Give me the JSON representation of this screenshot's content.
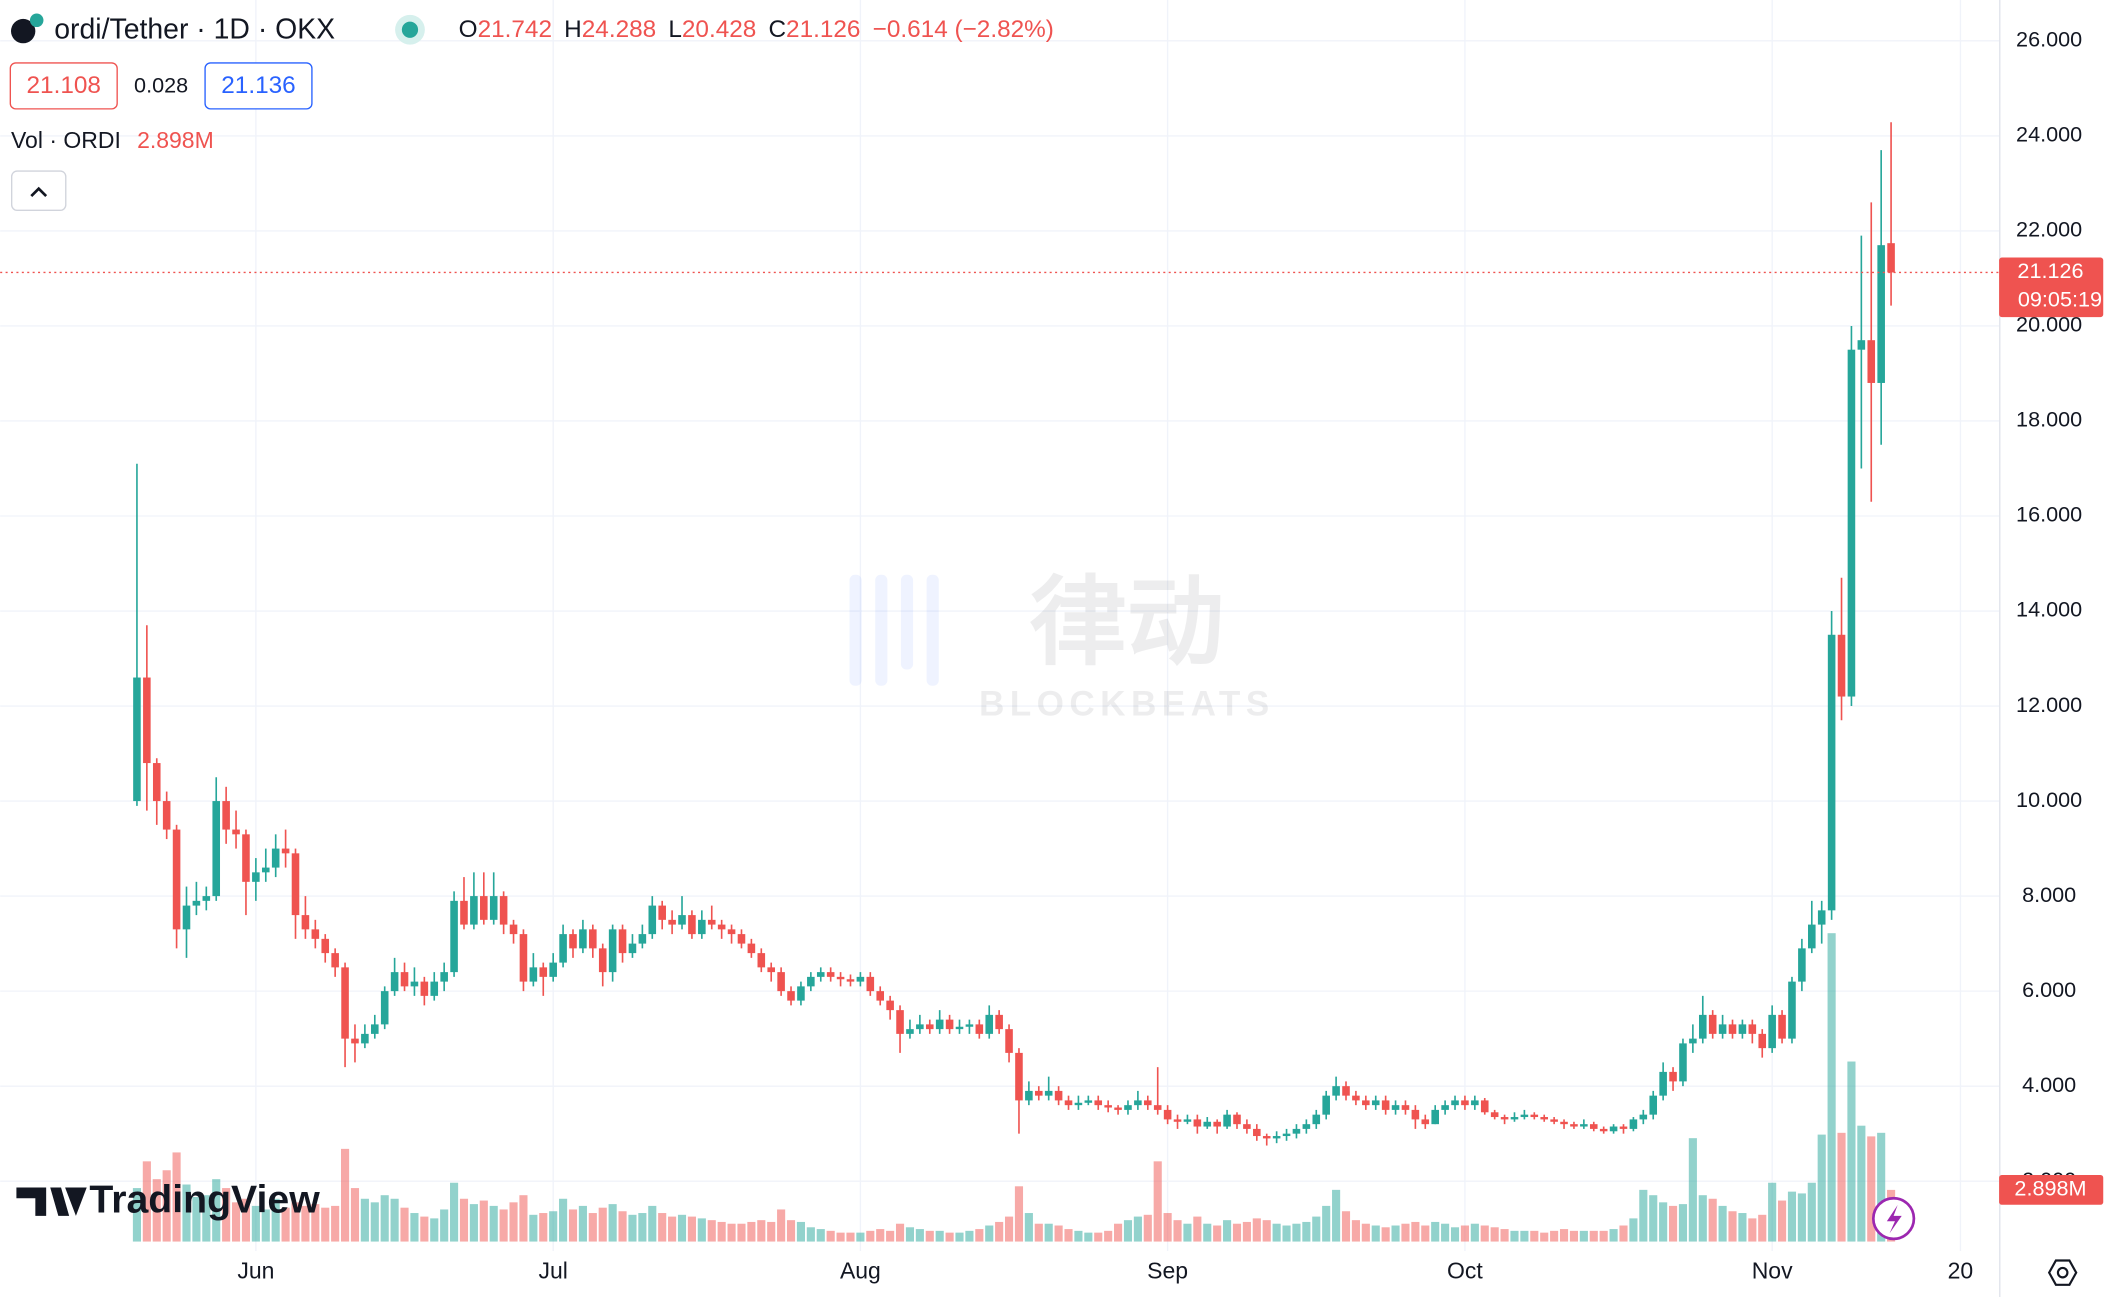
{
  "chart_data": {
    "type": "candlestick",
    "title": "ordi/Tether · 1D · OKX",
    "ohlc_letters": [
      "O",
      "H",
      "L",
      "C"
    ],
    "change_label": "−0.614 (−2.82%)",
    "bid": 21.108,
    "spread": 0.028,
    "ask": 21.136,
    "countdown": "09:05:19",
    "up_color": "#26a69a",
    "down_color": "#ef5350",
    "watermark": {
      "text": "律动",
      "subtext": "BLOCKBEATS"
    },
    "branding": "TradingView",
    "x": [
      0,
      1,
      2,
      3,
      4,
      5,
      6,
      7,
      8,
      9,
      10,
      11,
      12,
      13,
      14,
      15,
      16,
      17,
      18,
      19,
      20,
      21,
      22,
      23,
      24,
      25,
      26,
      27,
      28,
      29,
      30,
      31,
      32,
      33,
      34,
      35,
      36,
      37,
      38,
      39,
      40,
      41,
      42,
      43,
      44,
      45,
      46,
      47,
      48,
      49,
      50,
      51,
      52,
      53,
      54,
      55,
      56,
      57,
      58,
      59,
      60,
      61,
      62,
      63,
      64,
      65,
      66,
      67,
      68,
      69,
      70,
      71,
      72,
      73,
      74,
      75,
      76,
      77,
      78,
      79,
      80,
      81,
      82,
      83,
      84,
      85,
      86,
      87,
      88,
      89,
      90,
      91,
      92,
      93,
      94,
      95,
      96,
      97,
      98,
      99,
      100,
      101,
      102,
      103,
      104,
      105,
      106,
      107,
      108,
      109,
      110,
      111,
      112,
      113,
      114,
      115,
      116,
      117,
      118,
      119,
      120,
      121,
      122,
      123,
      124,
      125,
      126,
      127,
      128,
      129,
      130,
      131,
      132,
      133,
      134,
      135,
      136,
      137,
      138,
      139,
      140,
      141,
      142,
      143,
      144,
      145,
      146,
      147,
      148,
      149,
      150,
      151,
      152,
      153,
      154,
      155,
      156,
      157,
      158,
      159,
      160,
      161,
      162,
      163,
      164,
      165,
      166,
      167,
      168,
      169,
      170,
      171,
      172,
      173,
      174,
      175,
      176,
      177
    ],
    "open": [
      10.0,
      12.6,
      10.8,
      10.0,
      9.4,
      7.3,
      7.8,
      7.9,
      8.0,
      10.0,
      9.4,
      9.3,
      8.3,
      8.5,
      8.6,
      9.0,
      8.9,
      7.6,
      7.3,
      7.1,
      6.8,
      6.5,
      5.0,
      4.9,
      5.1,
      5.3,
      6.0,
      6.4,
      6.1,
      6.2,
      5.9,
      6.2,
      6.4,
      7.9,
      7.4,
      8.0,
      7.5,
      8.0,
      7.4,
      7.2,
      6.2,
      6.5,
      6.3,
      6.6,
      7.2,
      6.9,
      7.3,
      6.9,
      6.4,
      7.3,
      6.8,
      7.0,
      7.2,
      7.8,
      7.5,
      7.4,
      7.6,
      7.2,
      7.5,
      7.4,
      7.3,
      7.2,
      7.0,
      6.8,
      6.5,
      6.4,
      6.0,
      5.8,
      6.1,
      6.3,
      6.4,
      6.3,
      6.25,
      6.2,
      6.3,
      6.0,
      5.8,
      5.6,
      5.1,
      5.2,
      5.3,
      5.2,
      5.4,
      5.2,
      5.25,
      5.3,
      5.1,
      5.5,
      5.2,
      4.7,
      3.7,
      3.9,
      3.8,
      3.9,
      3.7,
      3.6,
      3.65,
      3.7,
      3.6,
      3.55,
      3.5,
      3.6,
      3.7,
      3.6,
      3.5,
      3.3,
      3.25,
      3.3,
      3.15,
      3.25,
      3.15,
      3.4,
      3.2,
      3.1,
      2.95,
      2.9,
      2.95,
      3.0,
      3.1,
      3.2,
      3.4,
      3.8,
      4.0,
      3.8,
      3.7,
      3.6,
      3.7,
      3.5,
      3.6,
      3.5,
      3.3,
      3.2,
      3.5,
      3.6,
      3.7,
      3.6,
      3.7,
      3.45,
      3.35,
      3.3,
      3.35,
      3.4,
      3.35,
      3.3,
      3.25,
      3.2,
      3.15,
      3.2,
      3.1,
      3.05,
      3.15,
      3.1,
      3.3,
      3.4,
      3.8,
      4.3,
      4.1,
      4.9,
      5.0,
      5.5,
      5.1,
      5.3,
      5.1,
      5.3,
      5.1,
      4.8,
      5.5,
      5.0,
      6.2,
      6.9,
      7.4,
      7.7,
      13.5,
      12.2,
      19.5,
      19.7,
      18.8,
      21.742
    ],
    "high": [
      17.1,
      13.7,
      10.9,
      10.2,
      9.5,
      8.2,
      8.3,
      8.2,
      10.5,
      10.3,
      9.8,
      9.4,
      8.8,
      9.0,
      9.3,
      9.4,
      9.0,
      8.0,
      7.5,
      7.2,
      6.9,
      6.6,
      5.3,
      5.3,
      5.5,
      6.1,
      6.7,
      6.6,
      6.5,
      6.3,
      6.4,
      6.6,
      8.1,
      8.4,
      8.5,
      8.5,
      8.5,
      8.1,
      7.5,
      7.3,
      6.8,
      6.6,
      6.8,
      7.4,
      7.3,
      7.5,
      7.4,
      7.0,
      7.4,
      7.4,
      7.2,
      7.4,
      8.0,
      7.9,
      7.7,
      8.0,
      7.7,
      7.7,
      7.8,
      7.5,
      7.4,
      7.3,
      7.1,
      6.9,
      6.6,
      6.5,
      6.1,
      6.2,
      6.4,
      6.5,
      6.5,
      6.4,
      6.35,
      6.4,
      6.4,
      6.1,
      5.9,
      5.7,
      5.4,
      5.5,
      5.4,
      5.6,
      5.5,
      5.4,
      5.4,
      5.4,
      5.7,
      5.6,
      5.3,
      4.8,
      4.1,
      4.0,
      4.2,
      4.0,
      3.8,
      3.8,
      3.8,
      3.8,
      3.7,
      3.6,
      3.7,
      3.9,
      3.8,
      4.4,
      3.6,
      3.4,
      3.4,
      3.4,
      3.35,
      3.3,
      3.5,
      3.45,
      3.3,
      3.2,
      3.0,
      3.05,
      3.1,
      3.2,
      3.3,
      3.5,
      3.9,
      4.2,
      4.1,
      3.9,
      3.8,
      3.8,
      3.8,
      3.7,
      3.7,
      3.6,
      3.4,
      3.6,
      3.7,
      3.8,
      3.8,
      3.8,
      3.75,
      3.5,
      3.4,
      3.45,
      3.5,
      3.45,
      3.4,
      3.35,
      3.3,
      3.25,
      3.3,
      3.25,
      3.15,
      3.2,
      3.2,
      3.35,
      3.5,
      3.9,
      4.5,
      4.4,
      5.0,
      5.3,
      5.9,
      5.6,
      5.5,
      5.4,
      5.4,
      5.4,
      5.2,
      5.7,
      5.6,
      6.3,
      7.1,
      7.9,
      7.9,
      14.0,
      14.7,
      20.0,
      21.9,
      22.6,
      23.7,
      24.288
    ],
    "low": [
      9.9,
      9.8,
      9.5,
      9.2,
      6.9,
      6.7,
      7.6,
      7.7,
      7.9,
      9.1,
      9.0,
      7.6,
      7.9,
      8.3,
      8.4,
      8.6,
      7.1,
      7.1,
      6.9,
      6.6,
      6.3,
      4.4,
      4.5,
      4.8,
      5.0,
      5.2,
      5.9,
      6.0,
      5.9,
      5.7,
      5.8,
      6.0,
      6.3,
      7.3,
      7.3,
      7.4,
      7.4,
      7.2,
      7.0,
      6.0,
      6.1,
      5.9,
      6.2,
      6.5,
      6.7,
      6.8,
      6.7,
      6.1,
      6.2,
      6.6,
      6.7,
      6.9,
      7.1,
      7.3,
      7.2,
      7.3,
      7.1,
      7.1,
      7.3,
      7.1,
      7.0,
      6.9,
      6.7,
      6.4,
      6.2,
      5.9,
      5.7,
      5.7,
      6.0,
      6.2,
      6.2,
      6.1,
      6.1,
      6.1,
      5.9,
      5.7,
      5.4,
      4.7,
      5.0,
      5.1,
      5.1,
      5.1,
      5.1,
      5.1,
      5.1,
      5.0,
      5.0,
      5.1,
      4.5,
      3.0,
      3.6,
      3.7,
      3.7,
      3.6,
      3.5,
      3.5,
      3.6,
      3.5,
      3.45,
      3.4,
      3.4,
      3.5,
      3.5,
      3.4,
      3.2,
      3.1,
      3.2,
      3.0,
      3.1,
      3.0,
      3.1,
      3.1,
      3.0,
      2.85,
      2.75,
      2.8,
      2.85,
      2.9,
      3.0,
      3.1,
      3.3,
      3.7,
      3.7,
      3.6,
      3.5,
      3.5,
      3.4,
      3.4,
      3.4,
      3.1,
      3.1,
      3.2,
      3.4,
      3.5,
      3.5,
      3.5,
      3.4,
      3.3,
      3.2,
      3.25,
      3.3,
      3.3,
      3.25,
      3.2,
      3.1,
      3.1,
      3.1,
      3.05,
      3.0,
      3.0,
      3.0,
      3.05,
      3.2,
      3.3,
      3.7,
      3.9,
      4.0,
      4.7,
      4.9,
      5.0,
      5.0,
      5.0,
      5.0,
      4.9,
      4.6,
      4.7,
      4.9,
      4.9,
      6.0,
      6.8,
      7.0,
      7.5,
      11.7,
      12.0,
      17.0,
      16.3,
      17.5,
      20.428
    ],
    "close": [
      12.6,
      10.8,
      10.0,
      9.4,
      7.3,
      7.8,
      7.9,
      8.0,
      10.0,
      9.4,
      9.3,
      8.3,
      8.5,
      8.6,
      9.0,
      8.9,
      7.6,
      7.3,
      7.1,
      6.8,
      6.5,
      5.0,
      4.9,
      5.1,
      5.3,
      6.0,
      6.4,
      6.1,
      6.2,
      5.9,
      6.2,
      6.4,
      7.9,
      7.4,
      8.0,
      7.5,
      8.0,
      7.4,
      7.2,
      6.2,
      6.5,
      6.3,
      6.6,
      7.2,
      6.9,
      7.3,
      6.9,
      6.4,
      7.3,
      6.8,
      7.0,
      7.2,
      7.8,
      7.5,
      7.4,
      7.6,
      7.2,
      7.5,
      7.4,
      7.3,
      7.2,
      7.0,
      6.8,
      6.5,
      6.4,
      6.0,
      5.8,
      6.1,
      6.3,
      6.4,
      6.3,
      6.25,
      6.2,
      6.3,
      6.0,
      5.8,
      5.6,
      5.1,
      5.2,
      5.3,
      5.2,
      5.4,
      5.2,
      5.25,
      5.3,
      5.1,
      5.5,
      5.2,
      4.7,
      3.7,
      3.9,
      3.8,
      3.9,
      3.7,
      3.6,
      3.65,
      3.7,
      3.6,
      3.55,
      3.5,
      3.6,
      3.7,
      3.6,
      3.5,
      3.3,
      3.25,
      3.3,
      3.15,
      3.25,
      3.15,
      3.4,
      3.2,
      3.1,
      2.95,
      2.9,
      2.95,
      3.0,
      3.1,
      3.2,
      3.4,
      3.8,
      4.0,
      3.8,
      3.7,
      3.6,
      3.7,
      3.5,
      3.6,
      3.5,
      3.3,
      3.2,
      3.5,
      3.6,
      3.7,
      3.6,
      3.7,
      3.45,
      3.35,
      3.3,
      3.35,
      3.4,
      3.35,
      3.3,
      3.25,
      3.2,
      3.15,
      3.2,
      3.1,
      3.05,
      3.15,
      3.1,
      3.3,
      3.4,
      3.8,
      4.3,
      4.1,
      4.9,
      5.0,
      5.5,
      5.1,
      5.3,
      5.1,
      5.3,
      5.1,
      4.8,
      5.5,
      5.0,
      6.2,
      6.9,
      7.4,
      7.7,
      13.5,
      12.2,
      19.5,
      19.7,
      18.8,
      21.7,
      21.126
    ],
    "volume": {
      "name": "Vol · ORDI",
      "last_label": "2.898M",
      "values": [
        3.0,
        4.5,
        3.5,
        4.0,
        5.0,
        3.2,
        2.5,
        2.6,
        3.5,
        3.0,
        2.2,
        2.4,
        2.0,
        1.8,
        2.4,
        1.9,
        2.2,
        2.0,
        2.1,
        1.9,
        2.0,
        5.2,
        3.0,
        2.4,
        2.2,
        2.6,
        2.4,
        1.9,
        1.6,
        1.4,
        1.3,
        1.8,
        3.3,
        2.4,
        2.1,
        2.3,
        2.0,
        1.8,
        2.2,
        2.6,
        1.5,
        1.6,
        1.7,
        2.4,
        1.8,
        2.0,
        1.6,
        1.9,
        2.1,
        1.7,
        1.5,
        1.6,
        2.0,
        1.6,
        1.4,
        1.5,
        1.4,
        1.3,
        1.2,
        1.1,
        1.0,
        1.0,
        1.1,
        1.2,
        1.1,
        1.8,
        1.2,
        1.1,
        0.8,
        0.7,
        0.6,
        0.5,
        0.5,
        0.5,
        0.6,
        0.7,
        0.6,
        1.0,
        0.8,
        0.7,
        0.6,
        0.6,
        0.5,
        0.5,
        0.6,
        0.7,
        0.9,
        1.1,
        1.4,
        3.1,
        1.6,
        1.0,
        1.0,
        0.9,
        0.7,
        0.6,
        0.5,
        0.5,
        0.6,
        1.0,
        1.2,
        1.4,
        1.5,
        4.5,
        1.6,
        1.2,
        1.0,
        1.4,
        1.0,
        0.9,
        1.2,
        1.0,
        1.1,
        1.3,
        1.2,
        1.0,
        0.9,
        1.0,
        1.1,
        1.4,
        2.0,
        2.9,
        1.7,
        1.2,
        1.0,
        0.9,
        0.8,
        0.9,
        1.0,
        1.1,
        0.9,
        1.1,
        1.0,
        0.8,
        0.9,
        1.0,
        0.9,
        0.8,
        0.7,
        0.6,
        0.6,
        0.6,
        0.5,
        0.6,
        0.7,
        0.6,
        0.6,
        0.6,
        0.6,
        0.7,
        0.9,
        1.3,
        2.9,
        2.6,
        2.2,
        2.0,
        2.1,
        5.8,
        2.6,
        2.4,
        2.0,
        1.7,
        1.6,
        1.3,
        1.5,
        3.3,
        2.3,
        2.8,
        2.7,
        3.3,
        6.0,
        17.3,
        6.1,
        10.1,
        6.5,
        5.9,
        6.1,
        2.898
      ]
    },
    "xlim": [
      -13.8,
      187.9
    ],
    "xticks": [
      {
        "value": 12,
        "label": "Jun"
      },
      {
        "value": 42,
        "label": "Jul"
      },
      {
        "value": 73,
        "label": "Aug"
      },
      {
        "value": 104,
        "label": "Sep"
      },
      {
        "value": 134,
        "label": "Oct"
      },
      {
        "value": 165,
        "label": "Nov"
      },
      {
        "value": 184,
        "label": "20"
      }
    ],
    "ylim": [
      0.53,
      26.86
    ],
    "yticks": [
      {
        "value": 2,
        "label": "2.000"
      },
      {
        "value": 4,
        "label": "4.000"
      },
      {
        "value": 6,
        "label": "6.000"
      },
      {
        "value": 8,
        "label": "8.000"
      },
      {
        "value": 10,
        "label": "10.000"
      },
      {
        "value": 12,
        "label": "12.000"
      },
      {
        "value": 14,
        "label": "14.000"
      },
      {
        "value": 16,
        "label": "16.000"
      },
      {
        "value": 18,
        "label": "18.000"
      },
      {
        "value": 20,
        "label": "20.000"
      },
      {
        "value": 22,
        "label": "22.000"
      },
      {
        "value": 24,
        "label": "24.000"
      },
      {
        "value": 26,
        "label": "26.000"
      }
    ],
    "grid": true
  }
}
